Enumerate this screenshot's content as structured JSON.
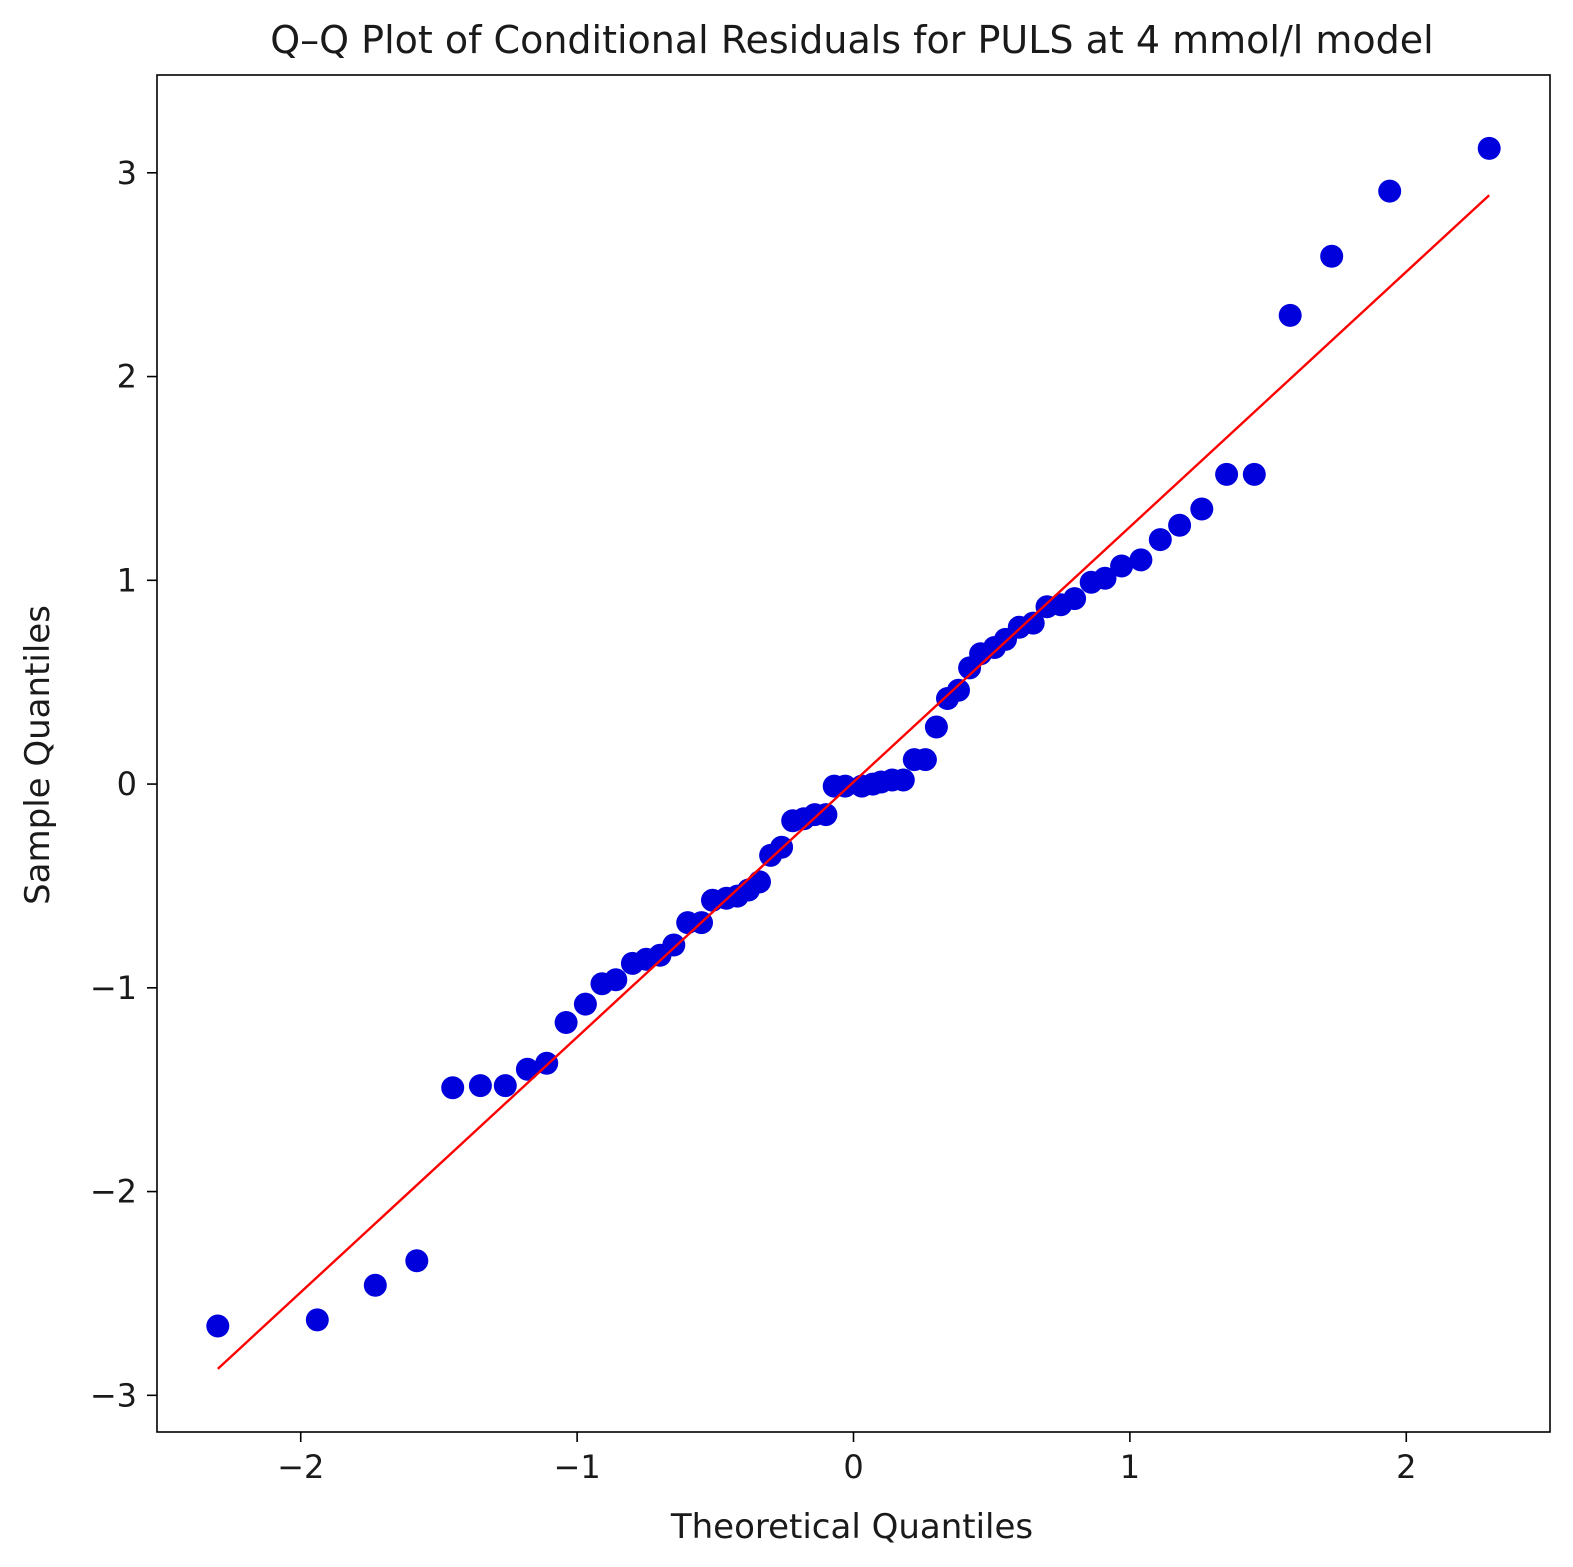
{
  "chart_data": {
    "type": "scatter",
    "title": "Q–Q Plot of Conditional Residuals for PULS at 4 mmol/l model",
    "xlabel": "Theoretical Quantiles",
    "ylabel": "Sample Quantiles",
    "xlim": [
      -2.52,
      2.52
    ],
    "ylim": [
      -3.18,
      3.48
    ],
    "grid": false,
    "x_ticks": [
      -2,
      -1,
      0,
      1,
      2
    ],
    "x_tick_labels": [
      "−2",
      "−1",
      "0",
      "1",
      "2"
    ],
    "y_ticks": [
      -3,
      -2,
      -1,
      0,
      1,
      2,
      3
    ],
    "y_tick_labels": [
      "−3",
      "−2",
      "−1",
      "0",
      "1",
      "2",
      "3"
    ],
    "series": [
      {
        "name": "sample quantiles",
        "color": "#0000dd",
        "points": [
          [
            -2.3,
            -2.66
          ],
          [
            -1.94,
            -2.63
          ],
          [
            -1.73,
            -2.46
          ],
          [
            -1.58,
            -2.34
          ],
          [
            -1.45,
            -1.49
          ],
          [
            -1.35,
            -1.48
          ],
          [
            -1.26,
            -1.48
          ],
          [
            -1.18,
            -1.4
          ],
          [
            -1.11,
            -1.37
          ],
          [
            -1.04,
            -1.17
          ],
          [
            -0.97,
            -1.08
          ],
          [
            -0.91,
            -0.98
          ],
          [
            -0.86,
            -0.96
          ],
          [
            -0.8,
            -0.88
          ],
          [
            -0.75,
            -0.86
          ],
          [
            -0.7,
            -0.84
          ],
          [
            -0.65,
            -0.79
          ],
          [
            -0.6,
            -0.68
          ],
          [
            -0.55,
            -0.68
          ],
          [
            -0.51,
            -0.57
          ],
          [
            -0.46,
            -0.56
          ],
          [
            -0.42,
            -0.55
          ],
          [
            -0.38,
            -0.52
          ],
          [
            -0.34,
            -0.48
          ],
          [
            -0.3,
            -0.35
          ],
          [
            -0.26,
            -0.31
          ],
          [
            -0.22,
            -0.18
          ],
          [
            -0.18,
            -0.17
          ],
          [
            -0.14,
            -0.15
          ],
          [
            -0.1,
            -0.15
          ],
          [
            -0.07,
            -0.01
          ],
          [
            -0.03,
            -0.01
          ],
          [
            0.03,
            -0.01
          ],
          [
            0.07,
            0.0
          ],
          [
            0.1,
            0.01
          ],
          [
            0.14,
            0.02
          ],
          [
            0.18,
            0.02
          ],
          [
            0.22,
            0.12
          ],
          [
            0.26,
            0.12
          ],
          [
            0.3,
            0.28
          ],
          [
            0.34,
            0.42
          ],
          [
            0.38,
            0.46
          ],
          [
            0.42,
            0.57
          ],
          [
            0.46,
            0.64
          ],
          [
            0.51,
            0.67
          ],
          [
            0.55,
            0.71
          ],
          [
            0.6,
            0.77
          ],
          [
            0.65,
            0.79
          ],
          [
            0.7,
            0.87
          ],
          [
            0.75,
            0.88
          ],
          [
            0.8,
            0.91
          ],
          [
            0.86,
            0.99
          ],
          [
            0.91,
            1.01
          ],
          [
            0.97,
            1.07
          ],
          [
            1.04,
            1.1
          ],
          [
            1.11,
            1.2
          ],
          [
            1.18,
            1.27
          ],
          [
            1.26,
            1.35
          ],
          [
            1.35,
            1.52
          ],
          [
            1.45,
            1.52
          ],
          [
            1.58,
            2.3
          ],
          [
            1.73,
            2.59
          ],
          [
            1.94,
            2.91
          ],
          [
            2.3,
            3.12
          ]
        ]
      }
    ],
    "reference_line": {
      "color": "#ff0000",
      "from": [
        -2.3,
        -2.87
      ],
      "to": [
        2.3,
        2.89
      ]
    }
  }
}
